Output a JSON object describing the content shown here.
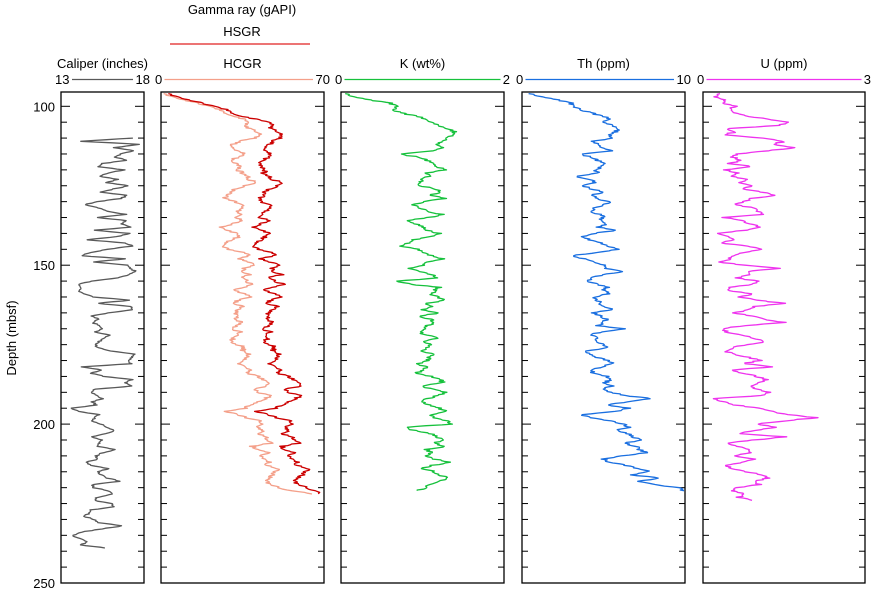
{
  "chart_data": {
    "type": "line",
    "title": "",
    "ylabel": "Depth (mbsf)",
    "ylim": [
      95.5,
      250
    ],
    "yticks_major": [
      100,
      150,
      200,
      250
    ],
    "ytick_minor_step": 5,
    "y_inverted": true,
    "group_header": {
      "label": "Gamma ray (gAPI)",
      "spans_panels": [
        "gamma"
      ]
    },
    "panels": [
      {
        "id": "caliper",
        "label": "Caliper (inches)",
        "xlim": [
          13,
          18
        ],
        "scale_min_label": "13",
        "scale_max_label": "18",
        "series": [
          {
            "name": "Caliper",
            "color": "#595959",
            "depth_start": 110,
            "depth_step": 1,
            "values": [
              17.3,
              14.2,
              17.8,
              16.2,
              17.4,
              16.6,
              16.3,
              17.0,
              15.5,
              15.2,
              16.8,
              15.9,
              15.3,
              16.4,
              15.7,
              17.1,
              16.2,
              15.4,
              17.0,
              16.6,
              15.2,
              14.4,
              15.3,
              15.8,
              16.9,
              15.2,
              17.0,
              16.6,
              17.2,
              15.1,
              17.1,
              16.4,
              14.5,
              16.9,
              17.3,
              15.8,
              14.8,
              14.2,
              16.9,
              15.0,
              17.0,
              17.2,
              17.5,
              17.1,
              16.4,
              14.9,
              14.0,
              14.2,
              14.1,
              14.3,
              15.0,
              17.2,
              15.2,
              17.2,
              17.3,
              15.8,
              14.9,
              15.3,
              14.9,
              15.3,
              15.5,
              15.1,
              15.9,
              15.6,
              15.3,
              15.1,
              15.2,
              16.0,
              17.4,
              17.3,
              17.0,
              17.2,
              14.3,
              15.5,
              14.8,
              15.6,
              17.3,
              16.8,
              17.3,
              15.1,
              14.8,
              15.2,
              15.5,
              14.9,
              15.1,
              13.6,
              14.1,
              15.3,
              15.0,
              14.9,
              15.4,
              15.8,
              16.2,
              15.7,
              14.9,
              15.5,
              15.3,
              15.2,
              16.3,
              15.5,
              15.1,
              15.2,
              14.5,
              14.8,
              15.9,
              15.2,
              15.4,
              15.8,
              16.6,
              14.9,
              15.0,
              15.8,
              16.1,
              15.2,
              15.0,
              16.0,
              16.2,
              14.8,
              14.7,
              14.4,
              15.0,
              15.3,
              16.7,
              15.4,
              14.2,
              13.7,
              14.1,
              14.6,
              14.2,
              15.7
            ]
          }
        ]
      },
      {
        "id": "gamma",
        "label": "HCGR",
        "xlim": [
          0,
          70
        ],
        "scale_min_label": "0",
        "scale_max_label": "70",
        "legend": [
          {
            "name": "HSGR",
            "color": "#e02020"
          },
          {
            "name": "HCGR",
            "color": "#f4a08a"
          }
        ],
        "series": [
          {
            "name": "HSGR",
            "color": "#cc0000",
            "depth_start": 96,
            "depth_step": 1,
            "values": [
              3,
              7,
              12,
              18,
              22,
              28,
              31,
              33,
              40,
              46,
              48,
              47,
              50,
              52,
              51,
              48,
              47,
              44,
              45,
              47,
              46,
              44,
              42,
              43,
              45,
              44,
              46,
              48,
              52,
              50,
              47,
              44,
              45,
              42,
              43,
              46,
              48,
              45,
              44,
              42,
              47,
              43,
              40,
              44,
              46,
              45,
              43,
              41,
              39,
              42,
              47,
              49,
              43,
              46,
              51,
              48,
              47,
              52,
              46,
              49,
              53,
              47,
              44,
              49,
              51,
              47,
              45,
              50,
              48,
              46,
              47,
              45,
              48,
              46,
              43,
              47,
              45,
              46,
              44,
              47,
              49,
              48,
              51,
              50,
              48,
              47,
              49,
              52,
              50,
              55,
              57,
              59,
              60,
              53,
              55,
              60,
              58,
              55,
              52,
              49,
              41,
              46,
              50,
              55,
              57,
              53,
              55,
              52,
              56,
              58,
              59,
              52,
              53,
              57,
              55,
              56,
              59,
              58,
              63,
              62,
              61,
              58,
              57,
              59,
              63,
              66,
              68
            ]
          },
          {
            "name": "HCGR",
            "color": "#f4a08a",
            "depth_start": 96,
            "depth_step": 1,
            "values": [
              1,
              5,
              10,
              16,
              20,
              25,
              28,
              30,
              35,
              37,
              36,
              38,
              41,
              43,
              40,
              34,
              31,
              30,
              33,
              36,
              33,
              30,
              32,
              34,
              33,
              35,
              37,
              38,
              41,
              36,
              32,
              30,
              29,
              27,
              32,
              34,
              36,
              33,
              35,
              32,
              35,
              31,
              26,
              29,
              32,
              34,
              30,
              28,
              26,
              29,
              35,
              38,
              34,
              37,
              40,
              36,
              34,
              38,
              35,
              37,
              39,
              35,
              31,
              36,
              38,
              33,
              31,
              35,
              33,
              32,
              34,
              31,
              35,
              32,
              30,
              34,
              33,
              31,
              30,
              33,
              36,
              35,
              38,
              37,
              34,
              34,
              36,
              39,
              37,
              42,
              44,
              46,
              45,
              40,
              42,
              47,
              45,
              42,
              38,
              36,
              28,
              33,
              37,
              42,
              44,
              41,
              44,
              42,
              45,
              46,
              47,
              39,
              42,
              46,
              43,
              44,
              47,
              45,
              50,
              49,
              48,
              46,
              45,
              47,
              51,
              56,
              65
            ]
          }
        ]
      },
      {
        "id": "k",
        "label": "K (wt%)",
        "xlim": [
          0,
          2
        ],
        "scale_min_label": "0",
        "scale_max_label": "2",
        "series": [
          {
            "name": "K",
            "color": "#16c13c",
            "depth_start": 96,
            "depth_step": 1,
            "values": [
              0.05,
              0.15,
              0.35,
              0.6,
              0.7,
              0.65,
              0.72,
              0.9,
              1.05,
              1.12,
              1.2,
              1.3,
              1.4,
              1.35,
              1.32,
              1.25,
              1.15,
              1.28,
              1.1,
              0.72,
              0.95,
              1.05,
              1.12,
              1.18,
              1.28,
              1.05,
              1.08,
              1.0,
              0.95,
              0.98,
              1.15,
              1.22,
              1.1,
              1.28,
              1.02,
              0.9,
              0.98,
              1.05,
              1.25,
              1.08,
              0.8,
              0.92,
              1.0,
              1.05,
              1.2,
              1.08,
              0.9,
              0.82,
              0.72,
              0.95,
              1.0,
              1.12,
              1.25,
              1.05,
              1.0,
              0.85,
              0.95,
              1.1,
              1.2,
              0.68,
              0.85,
              1.2,
              1.15,
              1.1,
              1.18,
              1.28,
              1.05,
              1.12,
              1.0,
              1.2,
              0.95,
              1.1,
              1.15,
              1.05,
              1.05,
              0.95,
              1.05,
              1.18,
              1.0,
              1.12,
              1.05,
              0.98,
              1.15,
              1.08,
              1.05,
              0.95,
              1.05,
              1.0,
              0.92,
              1.12,
              1.22,
              1.25,
              1.0,
              1.12,
              1.3,
              1.2,
              1.05,
              1.0,
              1.1,
              1.2,
              1.28,
              1.1,
              1.15,
              1.32,
              1.35,
              0.8,
              0.9,
              1.1,
              1.18,
              1.25,
              1.15,
              1.28,
              1.05,
              1.1,
              1.02,
              1.15,
              1.35,
              1.12,
              1.0,
              1.15,
              1.22,
              1.3,
              1.2,
              1.1,
              1.02,
              0.95
            ]
          }
        ]
      },
      {
        "id": "th",
        "label": "Th (ppm)",
        "xlim": [
          0,
          10
        ],
        "scale_min_label": "0",
        "scale_max_label": "10",
        "series": [
          {
            "name": "Th",
            "color": "#1a6fe0",
            "depth_start": 96,
            "depth_step": 1,
            "values": [
              0.4,
              1.2,
              2.2,
              3.0,
              3.2,
              3.6,
              4.2,
              4.8,
              5.5,
              5.0,
              5.6,
              5.9,
              5.8,
              5.2,
              5.7,
              4.3,
              4.6,
              5.0,
              5.4,
              3.6,
              4.2,
              4.6,
              5.0,
              4.9,
              4.5,
              4.7,
              3.3,
              4.2,
              4.4,
              3.8,
              4.2,
              5.0,
              4.3,
              4.6,
              5.4,
              5.1,
              4.5,
              4.2,
              4.8,
              5.0,
              4.8,
              5.2,
              4.6,
              5.8,
              4.4,
              3.6,
              4.2,
              4.8,
              5.2,
              5.9,
              4.6,
              3.1,
              3.8,
              4.4,
              5.0,
              5.2,
              6.1,
              4.9,
              4.3,
              4.0,
              4.6,
              5.2,
              5.0,
              5.3,
              4.4,
              4.6,
              4.8,
              5.0,
              5.6,
              4.3,
              4.8,
              5.2,
              5.0,
              4.6,
              6.4,
              4.8,
              4.2,
              4.6,
              4.5,
              5.1,
              5.2,
              3.9,
              4.2,
              4.6,
              5.2,
              5.6,
              4.9,
              4.2,
              4.4,
              5.3,
              5.4,
              5.1,
              5.6,
              4.9,
              5.5,
              6.4,
              7.9,
              6.5,
              5.3,
              6.5,
              5.7,
              3.6,
              4.3,
              5.5,
              6.2,
              6.6,
              5.8,
              6.5,
              6.8,
              7.3,
              6.3,
              7.0,
              7.2,
              7.6,
              6.0,
              5.0,
              5.4,
              6.4,
              7.2,
              7.8,
              6.8,
              8.4,
              7.1,
              8.2,
              9.5,
              10.0
            ]
          }
        ]
      },
      {
        "id": "u",
        "label": "U (ppm)",
        "xlim": [
          0,
          3
        ],
        "scale_min_label": "0",
        "scale_max_label": "3",
        "series": [
          {
            "name": "U",
            "color": "#ee33ee",
            "depth_start": 96,
            "depth_step": 1,
            "values": [
              0.3,
              0.2,
              0.45,
              0.35,
              0.6,
              0.5,
              0.55,
              0.8,
              1.2,
              1.6,
              1.4,
              0.45,
              0.6,
              0.4,
              1.1,
              1.5,
              1.3,
              1.7,
              1.2,
              0.6,
              0.55,
              0.7,
              0.5,
              0.9,
              0.4,
              0.65,
              0.55,
              0.8,
              0.7,
              0.95,
              0.75,
              1.1,
              1.35,
              0.9,
              0.75,
              0.6,
              0.95,
              1.0,
              1.1,
              0.4,
              0.7,
              0.9,
              1.05,
              0.8,
              0.25,
              0.45,
              0.6,
              0.3,
              0.85,
              1.1,
              0.75,
              0.55,
              0.5,
              0.3,
              0.75,
              1.4,
              0.8,
              0.9,
              0.6,
              1.0,
              0.9,
              0.5,
              0.45,
              0.9,
              0.7,
              1.0,
              1.5,
              0.95,
              0.8,
              0.6,
              0.9,
              1.1,
              1.5,
              0.75,
              0.35,
              0.45,
              0.7,
              0.95,
              1.15,
              0.8,
              0.55,
              0.4,
              0.6,
              0.85,
              1.05,
              0.75,
              1.3,
              0.5,
              0.75,
              1.0,
              1.2,
              1.0,
              0.9,
              1.0,
              1.25,
              1.1,
              0.2,
              0.4,
              0.6,
              1.0,
              1.3,
              1.55,
              2.1,
              1.5,
              1.0,
              1.35,
              0.95,
              0.65,
              1.5,
              0.95,
              0.45,
              0.6,
              0.9,
              0.85,
              0.6,
              1.0,
              0.75,
              0.4,
              0.55,
              0.8,
              1.1,
              1.2,
              0.95,
              1.05,
              0.6,
              0.55,
              0.8,
              0.65,
              0.9
            ]
          }
        ]
      }
    ]
  }
}
